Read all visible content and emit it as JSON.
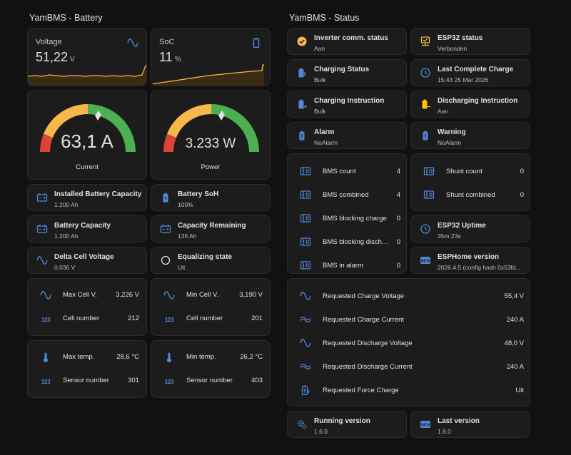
{
  "colors": {
    "accent_blue": "#4f8ad8",
    "amber": "#f7b84b",
    "green": "#4caf50",
    "red": "#db4437",
    "orange": "#ff9800",
    "yellow": "#ffc107"
  },
  "battery_section": {
    "title": "YamBMS - Battery",
    "voltage": {
      "name": "Voltage",
      "value": "51,22",
      "unit": "V",
      "icon": "sine-wave-icon"
    },
    "soc": {
      "name": "SoC",
      "value": "11",
      "unit": "%",
      "icon": "battery-icon"
    },
    "current_gauge": {
      "value": "63,1 A",
      "label": "Current",
      "needle_fraction": 0.6
    },
    "power_gauge": {
      "value": "3.233 W",
      "label": "Power",
      "needle_fraction": 0.6
    },
    "tiles": [
      {
        "name": "Installed Battery Capacity",
        "state": "1.200 Ah",
        "icon": "battery-capacity-icon"
      },
      {
        "name": "Battery SoH",
        "state": "100%",
        "icon": "battery-health-icon"
      },
      {
        "name": "Battery Capacity",
        "state": "1.200 Ah",
        "icon": "battery-capacity-icon"
      },
      {
        "name": "Capacity Remaining",
        "state": "136 Ah",
        "icon": "battery-capacity-icon"
      },
      {
        "name": "Delta Cell Voltage",
        "state": "0,036 V",
        "icon": "sine-wave-icon"
      },
      {
        "name": "Equalizing state",
        "state": "Uit",
        "icon": "circle-outline-icon"
      }
    ],
    "max_cell": {
      "label": "Max Cell V.",
      "value": "3,226 V",
      "cell_label": "Cell number",
      "cell_value": "212"
    },
    "min_cell": {
      "label": "Min Cell V.",
      "value": "3,190 V",
      "cell_label": "Cell number",
      "cell_value": "201"
    },
    "max_temp": {
      "label": "Max temp.",
      "value": "28,6 °C",
      "sensor_label": "Sensor number",
      "sensor_value": "301"
    },
    "min_temp": {
      "label": "Min temp.",
      "value": "26,2 °C",
      "sensor_label": "Sensor number",
      "sensor_value": "403"
    },
    "badge_text": "123"
  },
  "status_section": {
    "title": "YamBMS - Status",
    "tiles": [
      {
        "name": "Inverter comm. status",
        "state": "Aan",
        "icon": "check-circle-icon"
      },
      {
        "name": "ESP32 status",
        "state": "Verbonden",
        "icon": "esp-connected-icon"
      },
      {
        "name": "Charging Status",
        "state": "Bulk",
        "icon": "battery-charging-icon"
      },
      {
        "name": "Last Complete Charge",
        "state": "15:43 25 Mar 2026",
        "icon": "clock-history-icon"
      },
      {
        "name": "Charging Instruction",
        "state": "Bulk",
        "icon": "battery-plus-icon"
      },
      {
        "name": "Discharging Instruction",
        "state": "Aan",
        "icon": "battery-minus-icon"
      },
      {
        "name": "Alarm",
        "state": "NoAlarm",
        "icon": "battery-alert-icon"
      },
      {
        "name": "Warning",
        "state": "NoAlarm",
        "icon": "battery-alert-icon"
      }
    ],
    "bms_list": [
      {
        "name": "BMS count",
        "value": "4"
      },
      {
        "name": "BMS combined",
        "value": "4"
      },
      {
        "name": "BMS blocking charge",
        "value": "0"
      },
      {
        "name": "BMS blocking discharge",
        "value": "0"
      },
      {
        "name": "BMS in alarm",
        "value": "0"
      }
    ],
    "shunt_list": [
      {
        "name": "Shunt count",
        "value": "0"
      },
      {
        "name": "Shunt combined",
        "value": "0"
      }
    ],
    "esp_uptime": {
      "name": "ESP32 Uptime",
      "state": "35m 23s",
      "icon": "clock-history-icon"
    },
    "esphome_version": {
      "name": "ESPHome version",
      "state": "2026.4.5 (config hash 0x53fd...",
      "icon": "new-box-icon"
    },
    "requests": [
      {
        "name": "Requested Charge Voltage",
        "value": "55,4 V",
        "icon": "sine-wave-icon"
      },
      {
        "name": "Requested Charge Current",
        "value": "240 A",
        "icon": "current-dc-icon"
      },
      {
        "name": "Requested Discharge Voltage",
        "value": "48,0 V",
        "icon": "sine-wave-icon"
      },
      {
        "name": "Requested Discharge Current",
        "value": "240 A",
        "icon": "current-dc-icon"
      },
      {
        "name": "Requested Force Charge",
        "value": "Uit",
        "icon": "battery-charging-icon"
      }
    ],
    "running_version": {
      "name": "Running version",
      "state": "1.6.0",
      "icon": "cog-icon"
    },
    "last_version": {
      "name": "Last version",
      "state": "1.6.0",
      "icon": "new-box-icon"
    }
  }
}
